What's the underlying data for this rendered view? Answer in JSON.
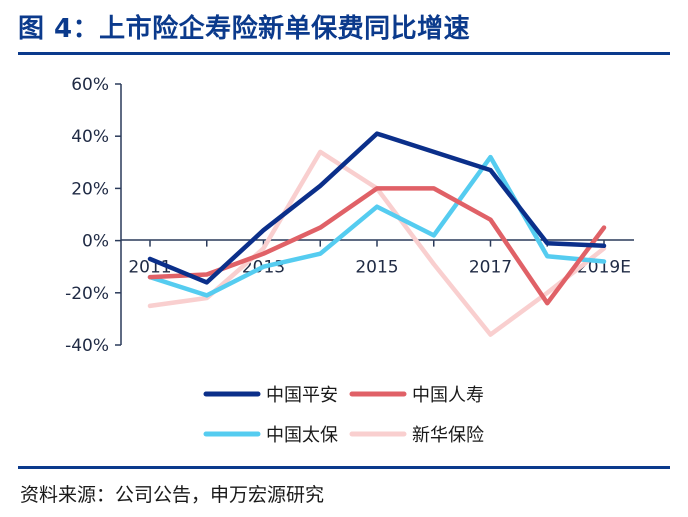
{
  "title": "图 4：上市险企寿险新单保费同比增速",
  "source": "资料来源：公司公告，申万宏源研究",
  "chart_data": {
    "type": "line",
    "title": "图 4：上市险企寿险新单保费同比增速",
    "xlabel": "",
    "ylabel": "",
    "ylim": [
      -40,
      60
    ],
    "yticks": [
      "60%",
      "40%",
      "20%",
      "0%",
      "-20%",
      "-40%"
    ],
    "ytick_values": [
      60,
      40,
      20,
      0,
      -20,
      -40
    ],
    "x": [
      "2011",
      "2012",
      "2013",
      "2014",
      "2015",
      "2016",
      "2017",
      "2018",
      "2019E"
    ],
    "x_tick_labels": [
      "2011",
      "2013",
      "2015",
      "2017",
      "2019E"
    ],
    "x_tick_indices": [
      0,
      2,
      4,
      6,
      8
    ],
    "grid": false,
    "legend_position": "bottom",
    "series": [
      {
        "name": "中国平安",
        "color": "#0b2f8a",
        "values": [
          -7,
          -16,
          4,
          21,
          41,
          34,
          27,
          -1,
          -2
        ]
      },
      {
        "name": "中国人寿",
        "color": "#e06167",
        "values": [
          -14,
          -13,
          -5,
          5,
          20,
          20,
          8,
          -24,
          5
        ]
      },
      {
        "name": "中国太保",
        "color": "#55ccf0",
        "values": [
          -14,
          -21,
          -10,
          -5,
          13,
          2,
          32,
          -6,
          -8
        ]
      },
      {
        "name": "新华保险",
        "color": "#f9cfcf",
        "values": [
          -25,
          -22,
          -3,
          34,
          20,
          -9,
          -36,
          -20,
          -3
        ]
      }
    ]
  }
}
